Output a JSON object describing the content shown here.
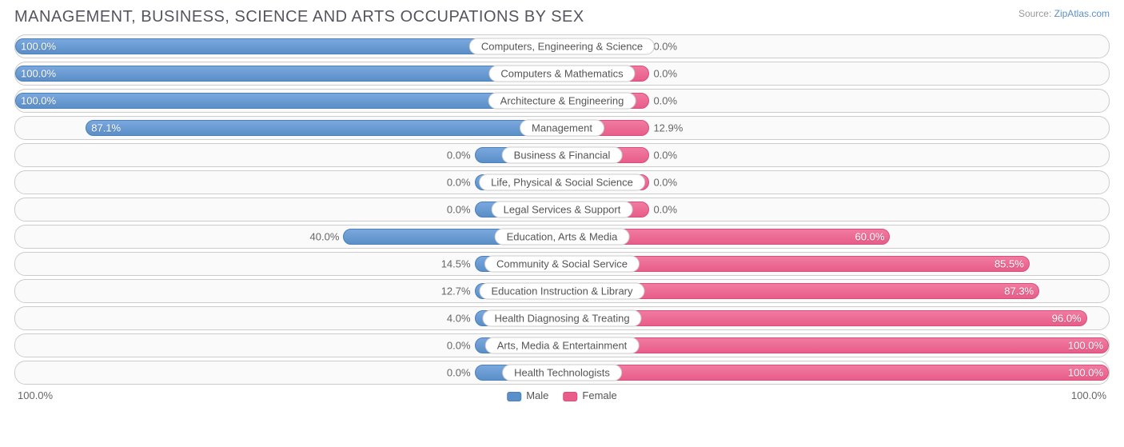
{
  "title": "MANAGEMENT, BUSINESS, SCIENCE AND ARTS OCCUPATIONS BY SEX",
  "source_prefix": "Source: ",
  "source_name": "ZipAtlas.com",
  "chart": {
    "type": "diverging-bar",
    "male_color": "#5b8fc7",
    "male_border": "#4a7fb8",
    "female_color": "#e85d8a",
    "female_border": "#d94d7a",
    "track_bg": "#fafafa",
    "track_border": "#cccccc",
    "label_bg": "#ffffff",
    "text_color": "#666666",
    "min_bar_pct": 16,
    "rows": [
      {
        "category": "Computers, Engineering & Science",
        "male": 100.0,
        "female": 0.0
      },
      {
        "category": "Computers & Mathematics",
        "male": 100.0,
        "female": 0.0
      },
      {
        "category": "Architecture & Engineering",
        "male": 100.0,
        "female": 0.0
      },
      {
        "category": "Management",
        "male": 87.1,
        "female": 12.9
      },
      {
        "category": "Business & Financial",
        "male": 0.0,
        "female": 0.0
      },
      {
        "category": "Life, Physical & Social Science",
        "male": 0.0,
        "female": 0.0
      },
      {
        "category": "Legal Services & Support",
        "male": 0.0,
        "female": 0.0
      },
      {
        "category": "Education, Arts & Media",
        "male": 40.0,
        "female": 60.0
      },
      {
        "category": "Community & Social Service",
        "male": 14.5,
        "female": 85.5
      },
      {
        "category": "Education Instruction & Library",
        "male": 12.7,
        "female": 87.3
      },
      {
        "category": "Health Diagnosing & Treating",
        "male": 4.0,
        "female": 96.0
      },
      {
        "category": "Arts, Media & Entertainment",
        "male": 0.0,
        "female": 100.0
      },
      {
        "category": "Health Technologists",
        "male": 0.0,
        "female": 100.0
      }
    ],
    "axis_left": "100.0%",
    "axis_right": "100.0%",
    "legend_male": "Male",
    "legend_female": "Female"
  }
}
